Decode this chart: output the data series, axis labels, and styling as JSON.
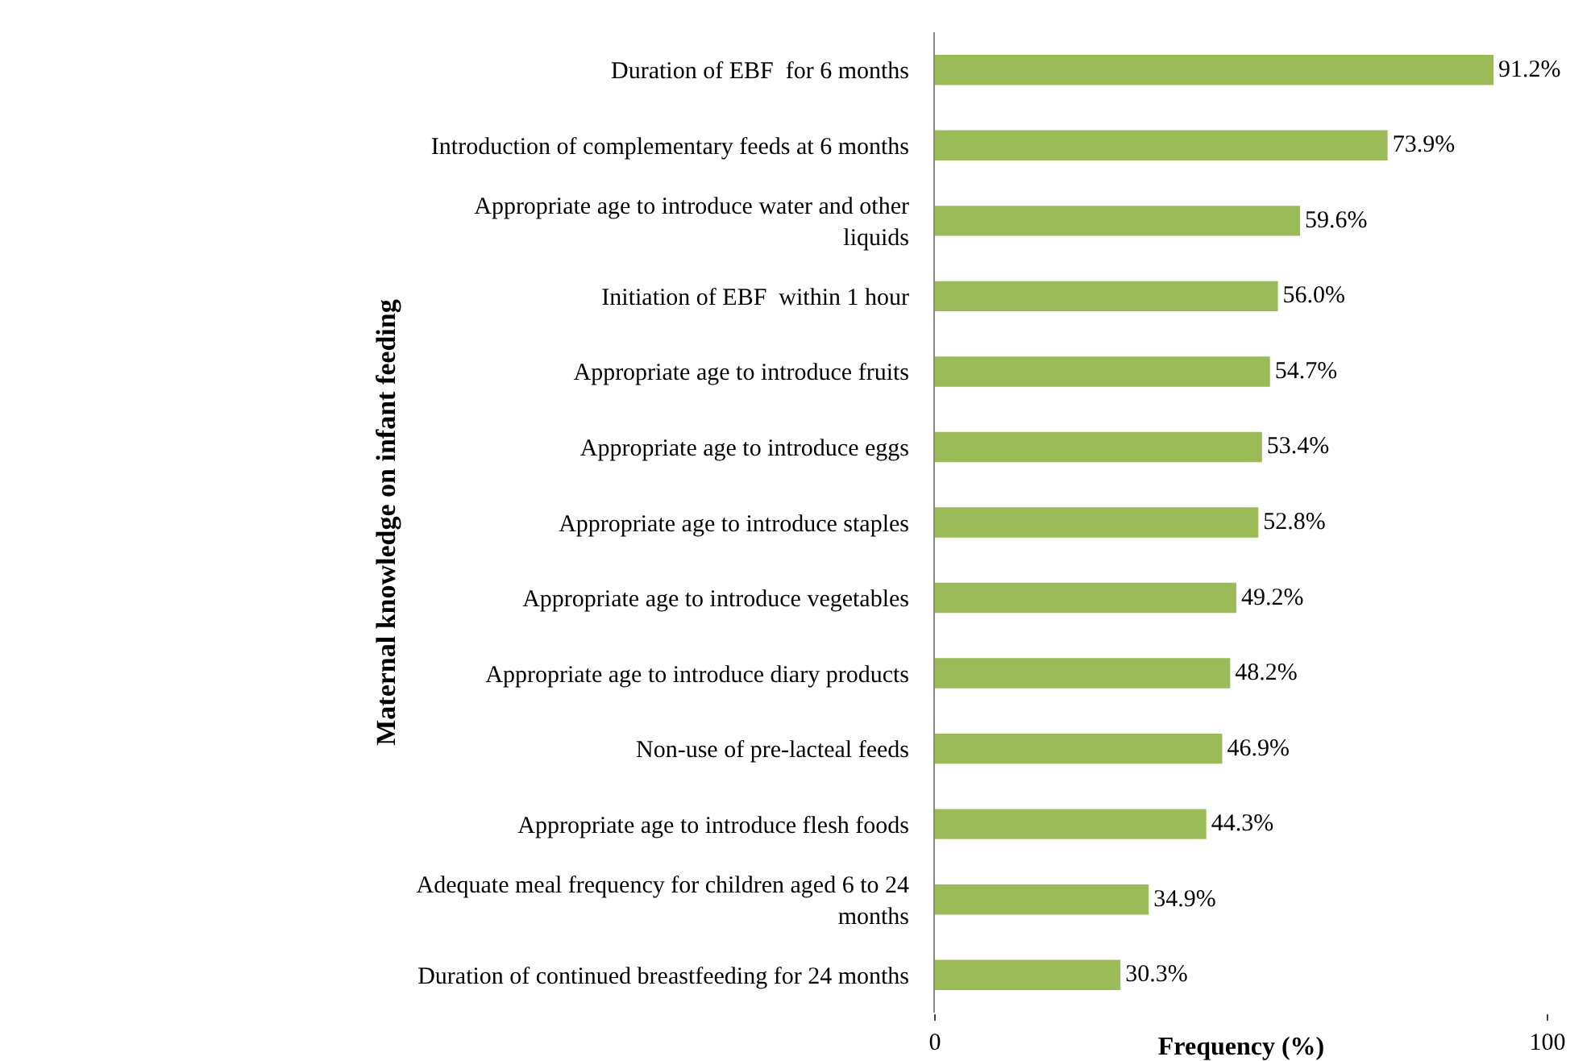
{
  "chart_data": {
    "type": "bar",
    "orientation": "horizontal",
    "xlabel": "Frequency (%)",
    "ylabel": "Maternal knowledge on infant feeding",
    "categories": [
      "Duration of EBF  for 6 months",
      "Introduction of complementary feeds at 6 months",
      "Appropriate age to introduce water and other liquids",
      "Initiation of EBF  within 1 hour",
      "Appropriate age to introduce fruits",
      "Appropriate age to introduce eggs",
      "Appropriate age to introduce staples",
      "Appropriate age to introduce vegetables",
      "Appropriate age to introduce diary products",
      "Non-use of pre-lacteal feeds",
      "Appropriate age to introduce flesh foods",
      "Adequate meal frequency for children aged 6 to 24 months",
      "Duration of continued breastfeeding for 24 months"
    ],
    "values": [
      91.2,
      73.9,
      59.6,
      56.0,
      54.7,
      53.4,
      52.8,
      49.2,
      48.2,
      46.9,
      44.3,
      34.9,
      30.3
    ],
    "value_labels": [
      "91.2%",
      "73.9%",
      "59.6%",
      "56.0%",
      "54.7%",
      "53.4%",
      "52.8%",
      "49.2%",
      "48.2%",
      "46.9%",
      "44.3%",
      "34.9%",
      "30.3%"
    ],
    "color": "#9bbb59",
    "xlim": [
      0,
      100
    ],
    "xticks": [
      0,
      100
    ]
  }
}
